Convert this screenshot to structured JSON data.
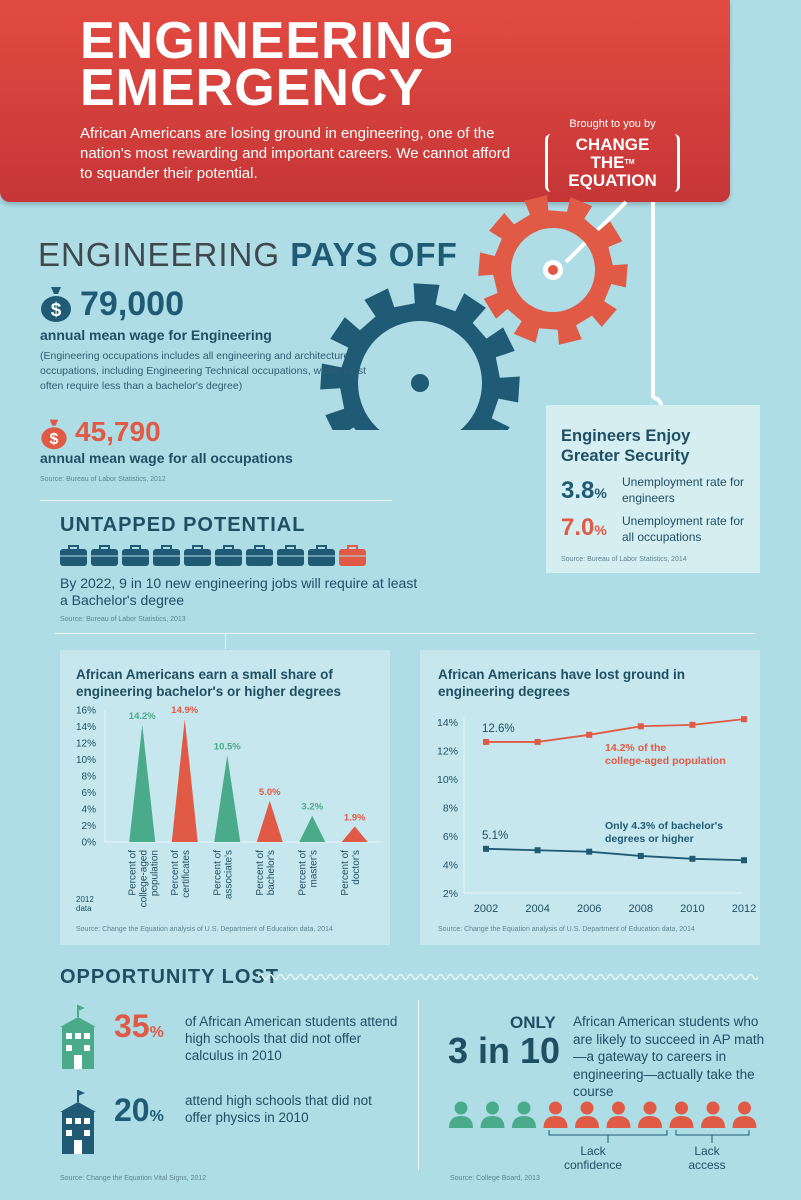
{
  "header": {
    "title_line1": "ENGINEERING",
    "title_line2": "EMERGENCY",
    "intro": "African Americans are losing ground in engineering, one of the nation's most rewarding and important careers. We cannot afford to squander their potential.",
    "brought_by": "Brought to you by",
    "logo_line1": "CHANGE THE",
    "logo_line2": "EQUATION",
    "trademark": "TM",
    "colors": {
      "red": "#d63f3b",
      "teal_dark": "#1f5b74",
      "teal_bg": "#aedde6",
      "green": "#4aab8a"
    }
  },
  "pays_off": {
    "title_plain": "ENGINEERING ",
    "title_bold": "PAYS OFF",
    "wage_eng": "79,000",
    "wage_eng_label": "annual mean wage for Engineering",
    "wage_eng_note": "(Engineering occupations includes all engineering and architecture occupations, including Engineering Technical occupations, which most often require less than a bachelor's degree)",
    "wage_all": "45,790",
    "wage_all_label": "annual mean wage for all occupations",
    "source": "Source: Bureau of Labor Statistics, 2012",
    "dollar_symbol": "$"
  },
  "security": {
    "title": "Engineers Enjoy Greater Security",
    "eng_rate_num": "3.8",
    "eng_rate_pct": "%",
    "eng_rate_label": "Unemployment rate for engineers",
    "all_rate_num": "7.0",
    "all_rate_pct": "%",
    "all_rate_label": "Unemployment rate for all occupations",
    "source": "Source: Bureau of Labor Statistics, 2014"
  },
  "untapped": {
    "title": "UNTAPPED POTENTIAL",
    "briefcase_total": 10,
    "briefcase_highlight": 1,
    "text": "By 2022, 9 in 10 new engineering jobs will require at least a Bachelor's degree",
    "source": "Source: Bureau of Labor Statistics, 2013"
  },
  "chart_data": [
    {
      "type": "bar",
      "title": "African Americans earn a small share of engineering bachelor's or higher degrees",
      "categories": [
        "Percent of college-aged population",
        "Percent of certificates",
        "Percent of associate's",
        "Percent of bachelor's",
        "Percent of master's",
        "Percent of doctor's"
      ],
      "cat_lines": [
        [
          "Percent of",
          "college-aged",
          "population"
        ],
        [
          "Percent of",
          "certificates"
        ],
        [
          "Percent of",
          "associate's"
        ],
        [
          "Percent of",
          "bachelor's"
        ],
        [
          "Percent of",
          "master's"
        ],
        [
          "Percent of",
          "doctor's"
        ]
      ],
      "values": [
        14.2,
        14.9,
        10.5,
        5.0,
        3.2,
        1.9
      ],
      "value_labels": [
        "14.2%",
        "14.9%",
        "10.5%",
        "5.0%",
        "3.2%",
        "1.9%"
      ],
      "highlight": [
        false,
        true,
        false,
        true,
        false,
        true
      ],
      "yticks": [
        "16%",
        "14%",
        "12%",
        "10%",
        "8%",
        "6%",
        "4%",
        "2%",
        "0%"
      ],
      "ylim": [
        0,
        16
      ],
      "year_note_1": "2012",
      "year_note_2": "data",
      "source": "Source: Change the Equation analysis of U.S. Department of Education data, 2014"
    },
    {
      "type": "line",
      "title": "African Americans have lost ground in engineering degrees",
      "x": [
        2002,
        2004,
        2006,
        2008,
        2010,
        2012
      ],
      "xticks": [
        "2002",
        "2004",
        "2006",
        "2008",
        "2010",
        "2012"
      ],
      "yticks": [
        "14%",
        "12%",
        "10%",
        "8%",
        "6%",
        "4%",
        "2%"
      ],
      "ylim": [
        2,
        14
      ],
      "series": [
        {
          "name": "college-aged population",
          "values": [
            12.6,
            12.6,
            13.1,
            13.7,
            13.8,
            14.2
          ],
          "start_label": "12.6%",
          "end_label_1": "14.2% of the",
          "end_label_2": "college-aged population",
          "color": "#e05a45"
        },
        {
          "name": "bachelor's degrees or higher",
          "values": [
            5.1,
            5.0,
            4.9,
            4.6,
            4.4,
            4.3
          ],
          "start_label": "5.1%",
          "end_label_1a": "Only ",
          "end_label_1b": "4.3%",
          "end_label_1c": " of bachelor's",
          "end_label_2": "degrees or higher",
          "color": "#1f5b74"
        }
      ],
      "source": "Source: Change the Equation analysis of U.S. Department of Education data, 2014"
    }
  ],
  "opportunity": {
    "title": "OPPORTUNITY LOST",
    "calc_pct_num": "35",
    "calc_pct_sym": "%",
    "calc_text": "of African American students attend high schools that did not offer calculus in 2010",
    "phys_pct_num": "20",
    "phys_pct_sym": "%",
    "phys_text": "attend high schools that did not offer physics in 2010",
    "source_left": "Source: Change the Equation Vital Signs, 2012",
    "only": "ONLY",
    "three_in_ten": "3 in 10",
    "ap_text": "African American students who are likely to succeed in AP math—a gateway to careers in engineering—actually take the course",
    "people_total": 10,
    "people_green": 3,
    "lack_confidence_1": "Lack",
    "lack_confidence_2": "confidence",
    "lack_access_1": "Lack",
    "lack_access_2": "access",
    "source_right": "Source: College Board, 2013"
  }
}
